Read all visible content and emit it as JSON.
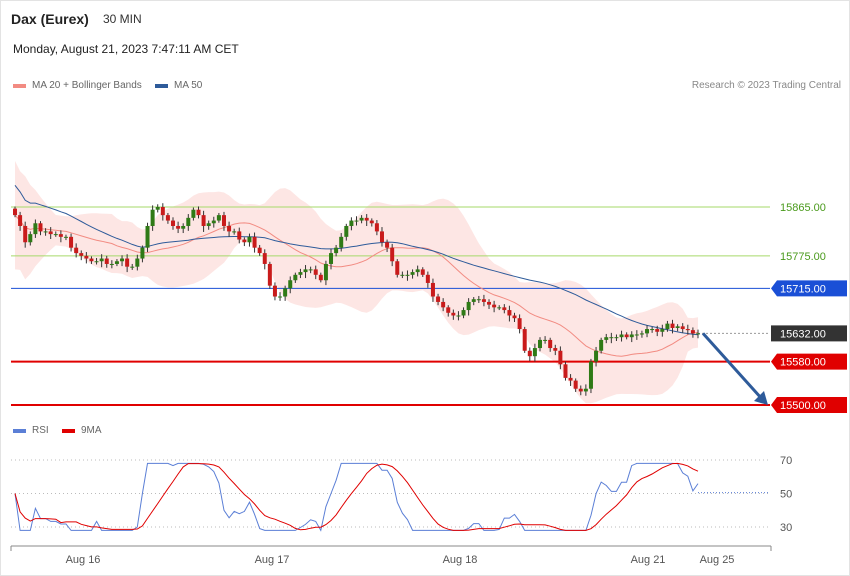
{
  "header": {
    "title": "Dax (Eurex)",
    "timeframe": "30 MIN",
    "datetime": "Monday, August 21, 2023 7:47:11 AM CET"
  },
  "legend": {
    "ma20_label": "MA 20 + Bollinger Bands",
    "ma20_color": "#f28b82",
    "ma50_label": "MA 50",
    "ma50_color": "#2e5b9a",
    "credit": "Research © 2023 Trading Central"
  },
  "rsi_legend": {
    "rsi_label": "RSI",
    "rsi_color": "#5b7fd6",
    "ma9_label": "9MA",
    "ma9_color": "#e00000"
  },
  "chart_data": [
    {
      "type": "candlestick",
      "ylim": [
        15475,
        15925
      ],
      "levels": [
        {
          "value": 15865,
          "label": "15865.00",
          "color": "#a6d96a",
          "style": "thin-green"
        },
        {
          "value": 15775,
          "label": "15775.00",
          "color": "#a6d96a",
          "style": "thin-green"
        },
        {
          "value": 15715,
          "label": "15715.00",
          "color": "#1a4fd6",
          "style": "blue-line-tag"
        },
        {
          "value": 15632,
          "label": "15632.00",
          "color": "#333333",
          "style": "dotted-current"
        },
        {
          "value": 15580,
          "label": "15580.00",
          "color": "#e00000",
          "style": "red-line-tag"
        },
        {
          "value": 15500,
          "label": "15500.00",
          "color": "#e00000",
          "style": "red-line-tag"
        }
      ],
      "x_ticks": [
        "Aug 16",
        "Aug 17",
        "Aug 18",
        "Aug 21",
        "Aug 25"
      ],
      "forecast_arrow": {
        "from": 15632,
        "to": 15500,
        "color": "#2e5b9a"
      },
      "closes": [
        15850,
        15830,
        15800,
        15815,
        15835,
        15820,
        15820,
        15815,
        15815,
        15810,
        15810,
        15790,
        15780,
        15775,
        15770,
        15765,
        15765,
        15770,
        15760,
        15760,
        15765,
        15770,
        15755,
        15755,
        15770,
        15790,
        15830,
        15860,
        15865,
        15850,
        15840,
        15830,
        15825,
        15830,
        15845,
        15860,
        15850,
        15830,
        15835,
        15840,
        15850,
        15830,
        15820,
        15820,
        15805,
        15800,
        15810,
        15790,
        15780,
        15760,
        15720,
        15700,
        15700,
        15715,
        15730,
        15740,
        15745,
        15750,
        15750,
        15740,
        15730,
        15760,
        15780,
        15790,
        15810,
        15830,
        15840,
        15840,
        15845,
        15840,
        15835,
        15820,
        15800,
        15790,
        15765,
        15740,
        15740,
        15740,
        15745,
        15750,
        15740,
        15725,
        15700,
        15690,
        15680,
        15670,
        15665,
        15665,
        15675,
        15690,
        15695,
        15695,
        15690,
        15685,
        15680,
        15680,
        15675,
        15665,
        15660,
        15640,
        15600,
        15590,
        15605,
        15620,
        15620,
        15605,
        15600,
        15575,
        15550,
        15545,
        15530,
        15525,
        15530,
        15580,
        15600,
        15620,
        15625,
        15625,
        15625,
        15630,
        15625,
        15630,
        15630,
        15632,
        15640,
        15640,
        15635,
        15640,
        15650,
        15642,
        15645,
        15640,
        15638,
        15632,
        15632
      ],
      "rsi_ylim": [
        20,
        80
      ],
      "rsi_ticks": [
        70,
        50,
        30
      ],
      "rsi_last": 50.5
    }
  ]
}
